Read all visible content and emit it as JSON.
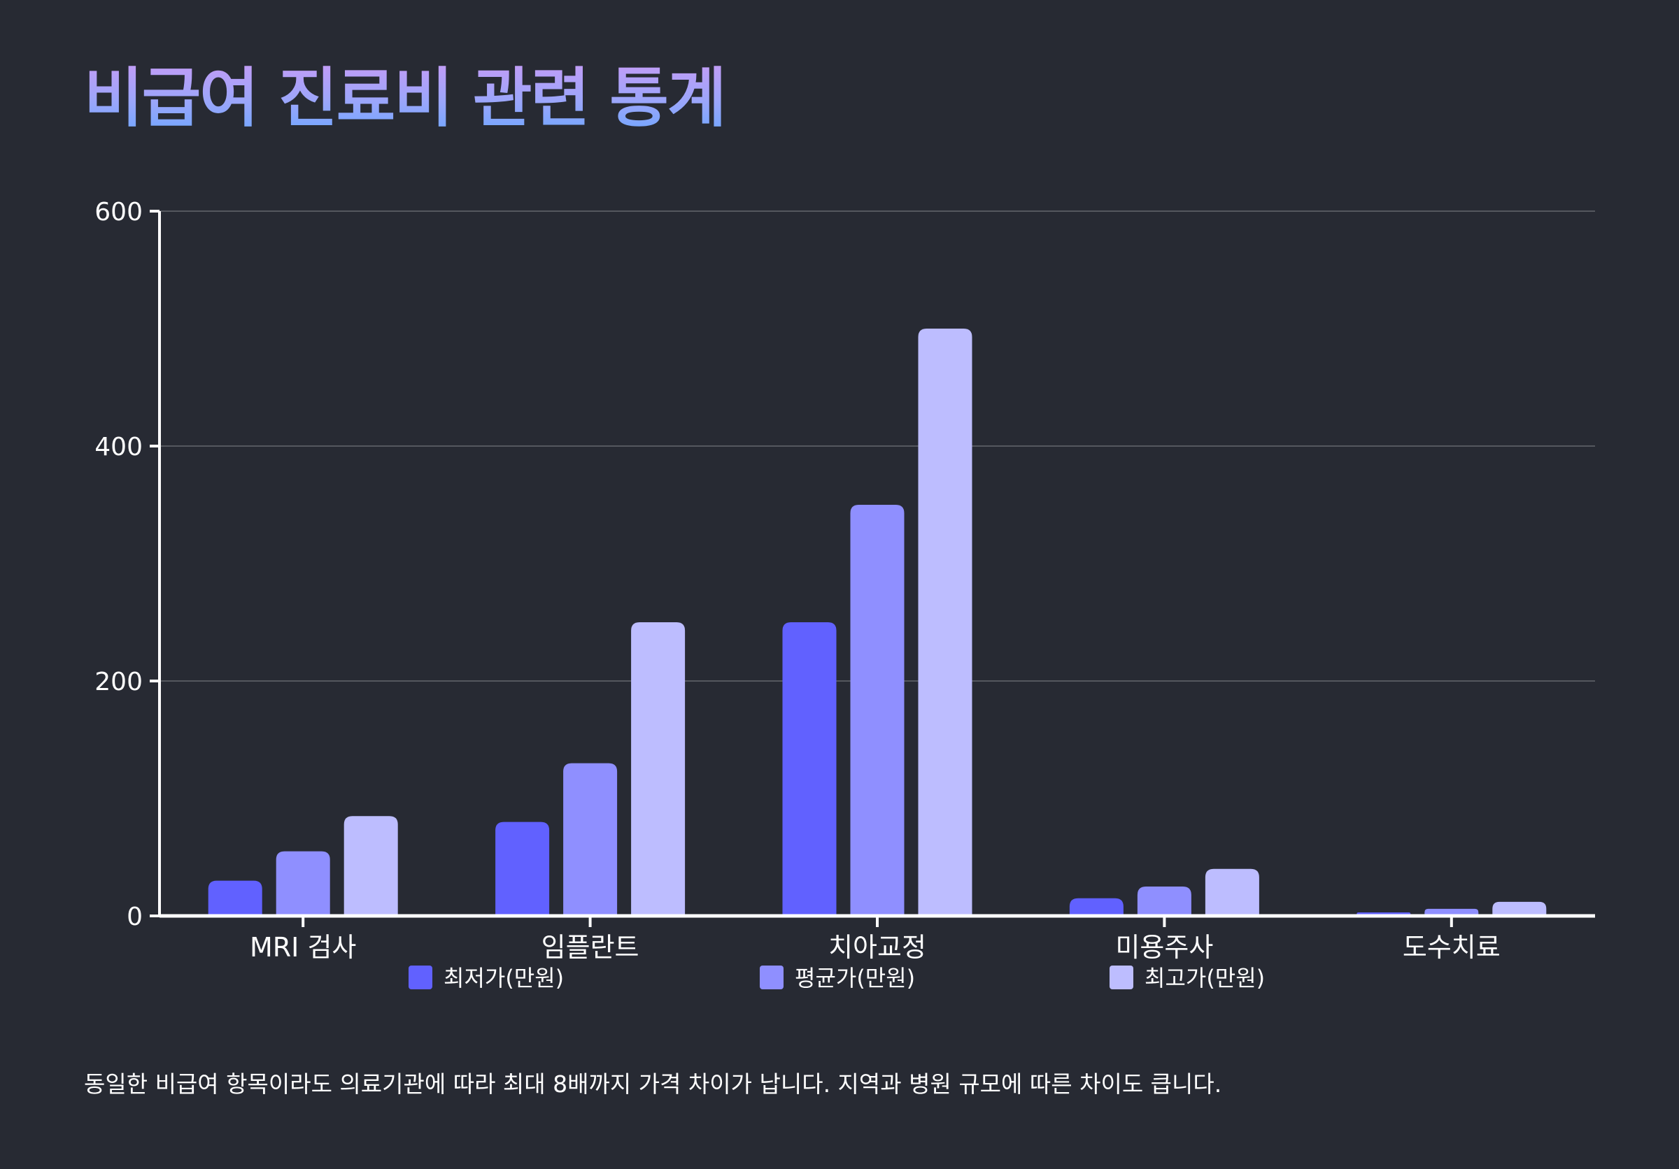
{
  "title": "비급여 진료비 관련 통계",
  "caption": "동일한 비급여 항목이라도 의료기관에 따라 최대 8배까지 가격 차이가 납니다. 지역과 병원 규모에 따른 차이도 큽니다.",
  "colors": {
    "background": "#272a33",
    "series": [
      "#6161ff",
      "#8f8fff",
      "#bdbdff"
    ],
    "grid": "#55585f",
    "axis": "#ffffff"
  },
  "chart_data": {
    "type": "bar",
    "categories": [
      "MRI 검사",
      "임플란트",
      "치아교정",
      "미용주사",
      "도수치료"
    ],
    "series": [
      {
        "name": "최저가(만원)",
        "values": [
          30,
          80,
          250,
          15,
          3
        ]
      },
      {
        "name": "평균가(만원)",
        "values": [
          55,
          130,
          350,
          25,
          6
        ]
      },
      {
        "name": "최고가(만원)",
        "values": [
          85,
          250,
          500,
          40,
          12
        ]
      }
    ],
    "ylim": [
      0,
      600
    ],
    "yticks": [
      0,
      200,
      400,
      600
    ],
    "grid": true,
    "legend_position": "bottom"
  }
}
